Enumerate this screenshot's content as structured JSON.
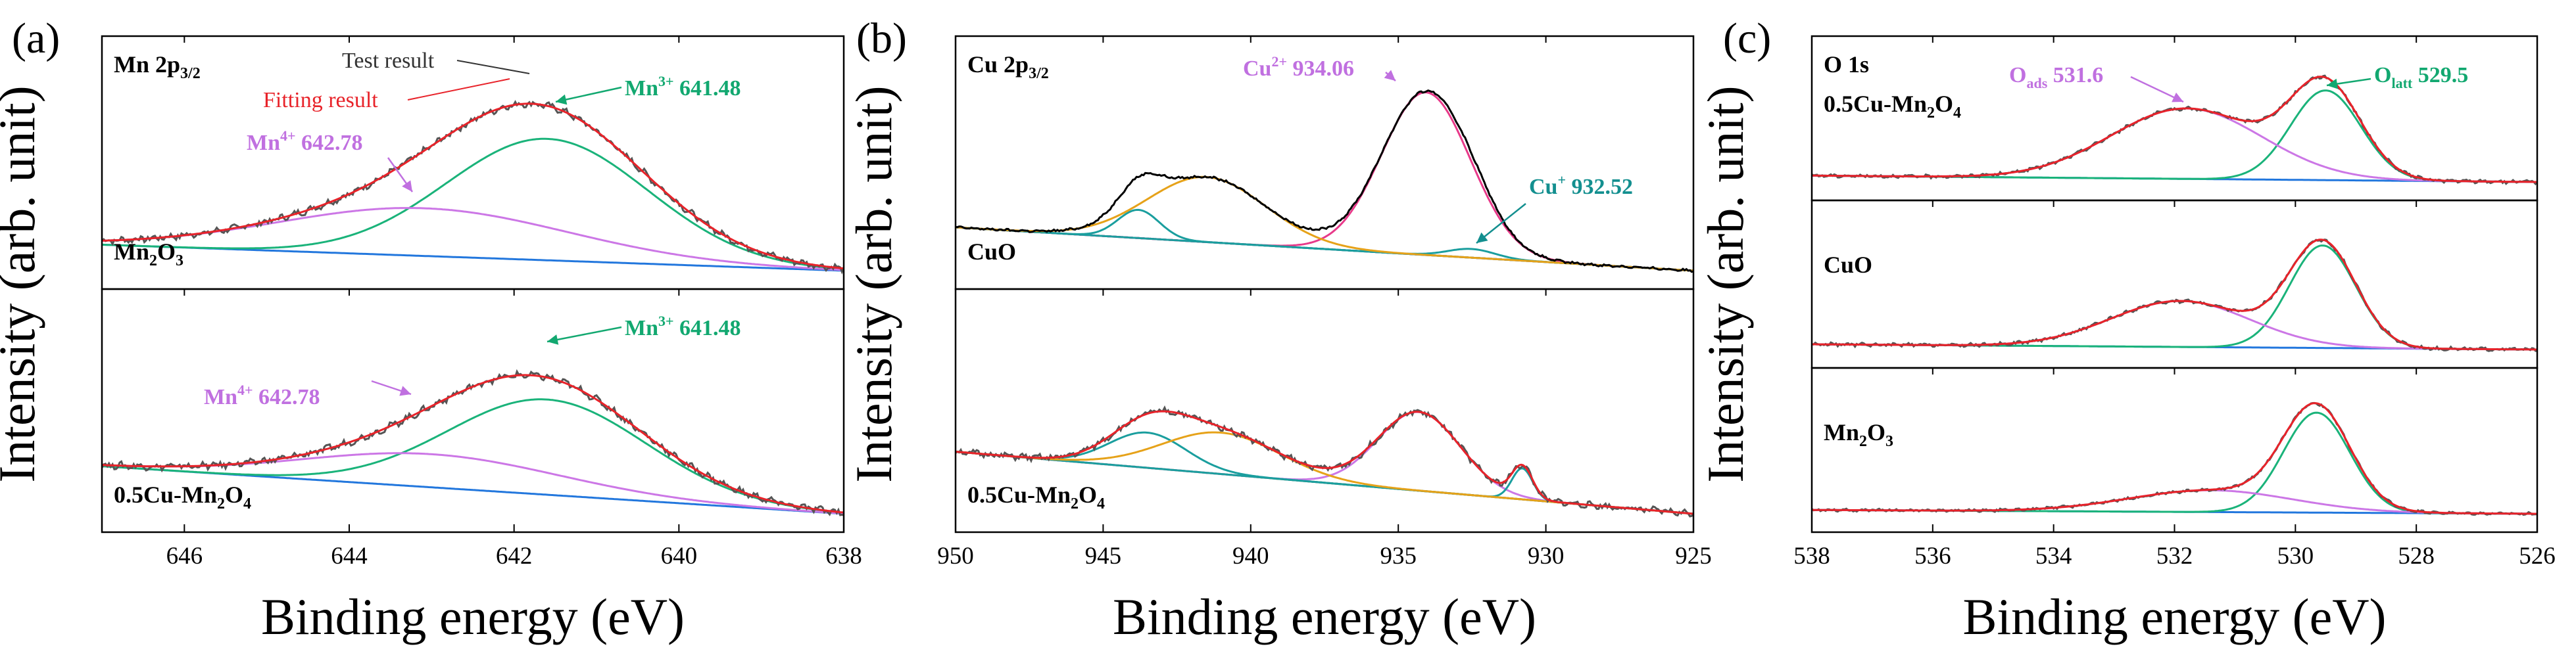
{
  "figure": {
    "xlabel": "Binding energy (eV)",
    "ylabel": "Intensity (arb. unit)"
  },
  "colors": {
    "test": "#555555",
    "fit": "#e8232a",
    "green": "#1ab37a",
    "purple": "#cc77e6",
    "blue": "#2277dd",
    "orange": "#e6a219",
    "teal": "#1a9e9e",
    "cuo_test": "#000000",
    "bg_cu_top": "#7a2a8a",
    "bg_cu_bot": "#e87c1e",
    "magenta": "#e83a8a",
    "label_purple": "#c070e0",
    "label_green": "#12a870",
    "label_teal": "#138f8f"
  },
  "chart_data": [
    {
      "type": "line",
      "panel": "(a)",
      "element": "Mn",
      "orbital": "2p",
      "orbital_sub": "3/2",
      "xlim": [
        647,
        638
      ],
      "xticks": [
        "646",
        "644",
        "642",
        "640",
        "638"
      ],
      "xtick_values": [
        646,
        644,
        642,
        640,
        638
      ],
      "legend": {
        "test": "Test result",
        "fit": "Fitting result"
      },
      "subplots": [
        {
          "sample": {
            "base": "Mn",
            "sub1": "2",
            "mid": "O",
            "sub2": "3"
          },
          "baseline": [
            0.12,
            0.0
          ],
          "noise": 0.012,
          "fit_noise": 0.003,
          "peaks": [
            {
              "name": "Mn3+",
              "center": 641.6,
              "amp": 0.56,
              "sigma": 1.22,
              "color": "green"
            },
            {
              "name": "Mn4+",
              "center": 643.1,
              "amp": 0.22,
              "sigma": 1.75,
              "color": "purple"
            }
          ],
          "labels": [
            {
              "sup_base": "Mn",
              "sup": "3+",
              "value": "641.48",
              "color": "label_green"
            },
            {
              "sup_base": "Mn",
              "sup": "4+",
              "value": "642.78",
              "color": "label_purple"
            }
          ]
        },
        {
          "sample": {
            "base": "0.5Cu-Mn",
            "sub1": "2",
            "mid": "O",
            "sub2": "4"
          },
          "baseline": [
            0.23,
            0.0
          ],
          "noise": 0.013,
          "fit_noise": 0.003,
          "peaks": [
            {
              "name": "Mn3+",
              "center": 641.6,
              "amp": 0.46,
              "sigma": 1.2,
              "color": "green"
            },
            {
              "name": "Mn4+",
              "center": 643.0,
              "amp": 0.16,
              "sigma": 1.55,
              "color": "purple"
            }
          ],
          "labels": [
            {
              "sup_base": "Mn",
              "sup": "3+",
              "value": "641.48",
              "color": "label_green"
            },
            {
              "sup_base": "Mn",
              "sup": "4+",
              "value": "642.78",
              "color": "label_purple"
            }
          ]
        }
      ]
    },
    {
      "type": "line",
      "panel": "(b)",
      "element": "Cu",
      "orbital": "2p",
      "orbital_sub": "3/2",
      "xlim": [
        950,
        925
      ],
      "xticks": [
        "950",
        "945",
        "940",
        "935",
        "930",
        "925"
      ],
      "xtick_values": [
        950,
        945,
        940,
        935,
        930,
        925
      ],
      "subplots": [
        {
          "sample": {
            "base": "CuO",
            "sub1": "",
            "mid": "",
            "sub2": ""
          },
          "baseline": [
            0.2,
            0.0
          ],
          "test_color": "cuo_test",
          "noise": 0.004,
          "peaks": [
            {
              "name": "Cu2+",
              "center": 934.06,
              "amp": 0.75,
              "sigma": 1.5,
              "color": "magenta"
            },
            {
              "name": "Cu+",
              "center": 932.52,
              "amp": 0.04,
              "sigma": 0.8,
              "color": "teal"
            },
            {
              "name": "sat1",
              "center": 943.8,
              "amp": 0.13,
              "sigma": 0.7,
              "color": "teal"
            },
            {
              "name": "sat2",
              "center": 941.5,
              "amp": 0.3,
              "sigma": 2.0,
              "color": "orange"
            }
          ],
          "labels": [
            {
              "sup_base": "Cu",
              "sup": "2+",
              "value": "934.06",
              "color": "label_purple"
            },
            {
              "sup_base": "Cu",
              "sup": "+",
              "value": "932.52",
              "color": "label_teal"
            }
          ]
        },
        {
          "sample": {
            "base": "0.5Cu-Mn",
            "sub1": "2",
            "mid": "O",
            "sub2": "4"
          },
          "baseline": [
            0.3,
            0.0
          ],
          "noise": 0.012,
          "fit_noise": 0.002,
          "peaks": [
            {
              "name": "Cu2+",
              "center": 934.3,
              "amp": 0.38,
              "sigma": 1.4,
              "color": "purple"
            },
            {
              "name": "Cu+",
              "center": 930.8,
              "amp": 0.15,
              "sigma": 0.35,
              "color": "teal"
            },
            {
              "name": "sat1",
              "center": 943.5,
              "amp": 0.17,
              "sigma": 1.3,
              "color": "teal"
            },
            {
              "name": "sat2",
              "center": 941.0,
              "amp": 0.2,
              "sigma": 2.0,
              "color": "orange"
            }
          ],
          "labels": []
        }
      ]
    },
    {
      "type": "line",
      "panel": "(c)",
      "element": "O 1s",
      "orbital": "",
      "orbital_sub": "",
      "xlim": [
        538,
        526
      ],
      "xticks": [
        "538",
        "536",
        "534",
        "532",
        "530",
        "528",
        "526"
      ],
      "xtick_values": [
        538,
        536,
        534,
        532,
        530,
        528,
        526
      ],
      "subplots": [
        {
          "sample": {
            "base": "0.5Cu-Mn",
            "sub1": "2",
            "mid": "O",
            "sub2": "4"
          },
          "baseline": [
            0.05,
            0.0
          ],
          "noise": 0.01,
          "fit_noise": 0.002,
          "peaks": [
            {
              "name": "Olatt",
              "center": 529.5,
              "amp": 0.7,
              "sigma": 0.58,
              "color": "green"
            },
            {
              "name": "Oads",
              "center": 531.8,
              "amp": 0.55,
              "sigma": 1.25,
              "color": "purple"
            }
          ],
          "labels": [
            {
              "sup_base": "O",
              "sub": "ads",
              "value": "531.6",
              "color": "label_purple"
            },
            {
              "sup_base": "O",
              "sub": "latt",
              "value": "529.5",
              "color": "label_green"
            }
          ]
        },
        {
          "sample": {
            "base": "CuO",
            "sub1": "",
            "mid": "",
            "sub2": ""
          },
          "baseline": [
            0.04,
            0.0
          ],
          "noise": 0.01,
          "fit_noise": 0.002,
          "peaks": [
            {
              "name": "Olatt",
              "center": 529.55,
              "amp": 0.78,
              "sigma": 0.55,
              "color": "green"
            },
            {
              "name": "Oads",
              "center": 531.9,
              "amp": 0.35,
              "sigma": 1.15,
              "color": "purple"
            }
          ],
          "labels": []
        },
        {
          "sample": {
            "base": "Mn",
            "sub1": "2",
            "mid": "O",
            "sub2": "3"
          },
          "baseline": [
            0.03,
            0.0
          ],
          "noise": 0.008,
          "fit_noise": 0.002,
          "peaks": [
            {
              "name": "Olatt",
              "center": 529.65,
              "amp": 0.78,
              "sigma": 0.55,
              "color": "green"
            },
            {
              "name": "Oads",
              "center": 531.4,
              "amp": 0.17,
              "sigma": 1.35,
              "color": "purple"
            }
          ],
          "labels": []
        }
      ]
    }
  ]
}
